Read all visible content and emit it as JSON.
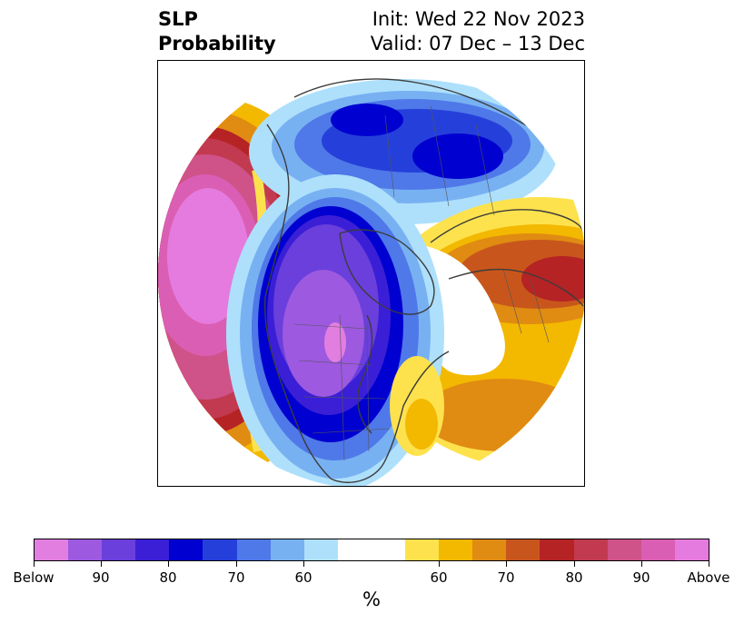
{
  "title": {
    "left_line1": "SLP",
    "left_line2": "Probability",
    "right_line1": "Init: Wed 22 Nov 2023",
    "right_line2": "Valid: 07 Dec – 13 Dec"
  },
  "colorbar": {
    "colors": [
      "#e27ee0",
      "#9d59e0",
      "#6b3fdb",
      "#3a1fd6",
      "#0000d0",
      "#2540da",
      "#4f78e8",
      "#78b1f2",
      "#aee0fb",
      "#ffffff",
      "#fde24d",
      "#f3b800",
      "#e08b12",
      "#c8561c",
      "#b52325",
      "#c23a50",
      "#cf5289",
      "#da5fb4",
      "#e57bde"
    ],
    "tick_labels": [
      "Below",
      "90",
      "80",
      "70",
      "60",
      "60",
      "70",
      "80",
      "90",
      "Above"
    ],
    "unit_label": "%"
  },
  "legend_colors": {
    "below_extreme": "#e27ee0",
    "below_strong": "#0000d0",
    "neutral": "#ffffff",
    "above_moderate": "#f3b800",
    "above_strong": "#b52325",
    "above_extreme": "#e57bde"
  }
}
